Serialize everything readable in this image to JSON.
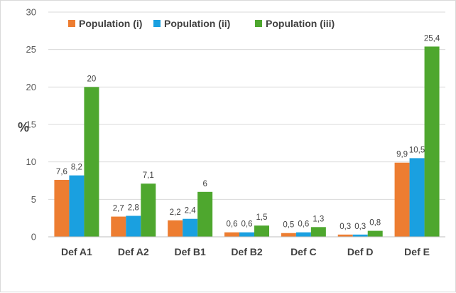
{
  "chart_data": {
    "type": "bar",
    "title": "",
    "xlabel": "",
    "ylabel": "%",
    "ylim": [
      0,
      30
    ],
    "yticks": [
      0,
      5,
      10,
      15,
      20,
      25,
      30
    ],
    "ytick_labels": [
      "0",
      "5",
      "10",
      "15",
      "20",
      "25",
      "30"
    ],
    "grid": "horizontal",
    "legend_position": "top-left",
    "categories": [
      "Def A1",
      "Def A2",
      "Def B1",
      "Def B2",
      "Def C",
      "Def D",
      "Def E"
    ],
    "series": [
      {
        "name": "Population (i)",
        "color": "#ED7D31",
        "values": [
          7.6,
          2.7,
          2.2,
          0.6,
          0.5,
          0.3,
          9.9
        ],
        "labels": [
          "7,6",
          "2,7",
          "2,2",
          "0,6",
          "0,5",
          "0,3",
          "9,9"
        ]
      },
      {
        "name": "Population (ii)",
        "color": "#1AA0E0",
        "values": [
          8.2,
          2.8,
          2.4,
          0.6,
          0.6,
          0.3,
          10.5
        ],
        "labels": [
          "8,2",
          "2,8",
          "2,4",
          "0,6",
          "0,6",
          "0,3",
          "10,5"
        ]
      },
      {
        "name": "Population (iii)",
        "color": "#4EA72E",
        "values": [
          20,
          7.1,
          6,
          1.5,
          1.3,
          0.8,
          25.4
        ],
        "labels": [
          "20",
          "7,1",
          "6",
          "1,5",
          "1,3",
          "0,8",
          "25,4"
        ]
      }
    ]
  }
}
